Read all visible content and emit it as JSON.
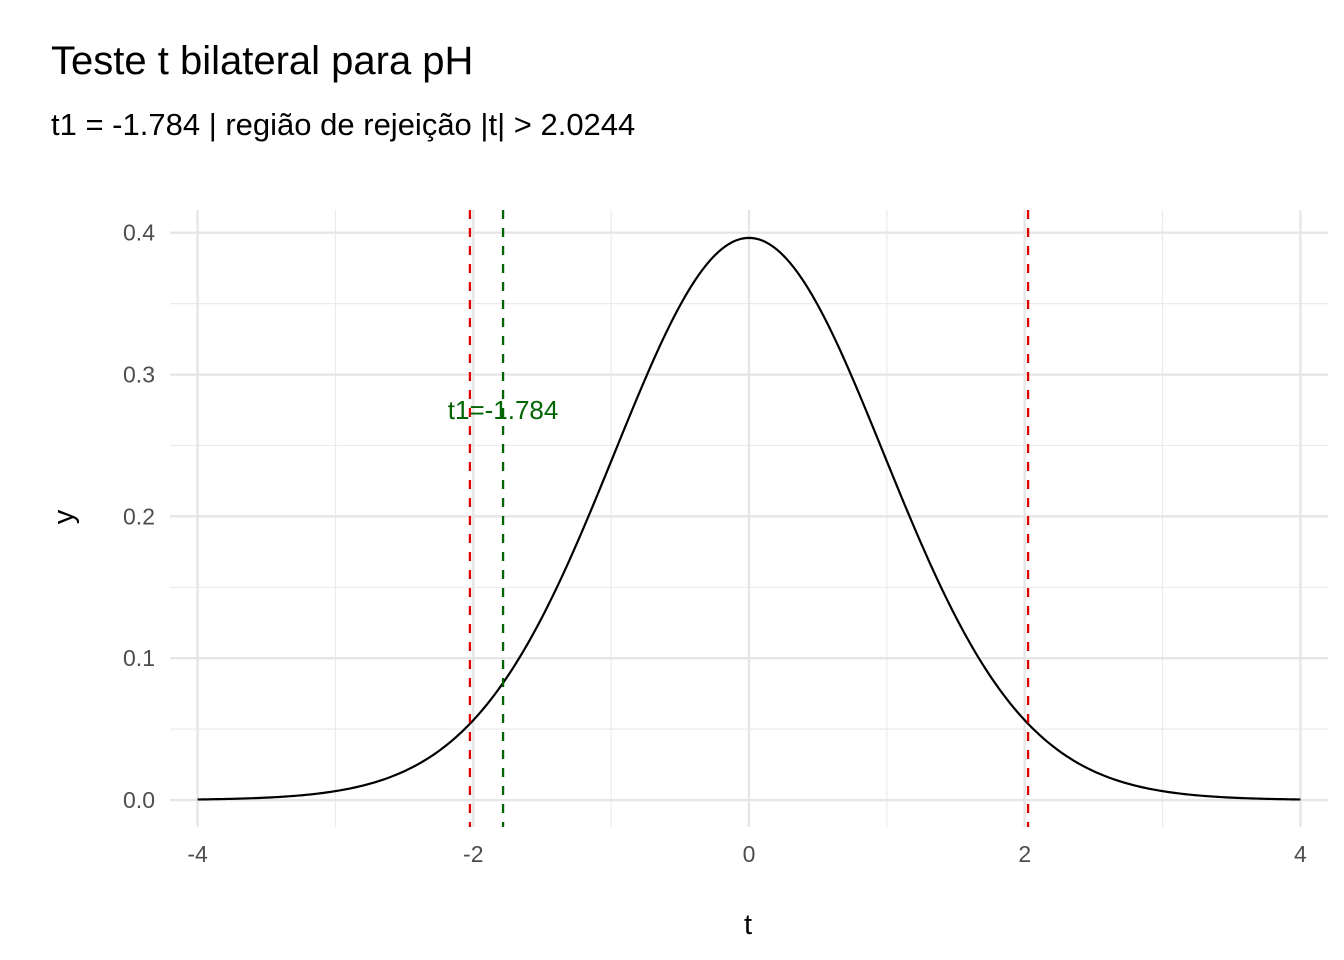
{
  "chart_data": {
    "type": "line",
    "title": "Teste t bilateral para pH",
    "subtitle": "t1 = -1.784  | região de rejeição |t| > 2.0244",
    "xlabel": "t",
    "ylabel": "y",
    "xlim": [
      -4.2,
      4.2
    ],
    "ylim": [
      -0.019,
      0.416
    ],
    "x_ticks": [
      -4,
      -2,
      0,
      2,
      4
    ],
    "x_tick_labels": [
      "-4",
      "-2",
      "0",
      "2",
      "4"
    ],
    "y_ticks": [
      0.0,
      0.1,
      0.2,
      0.3,
      0.4
    ],
    "y_tick_labels": [
      "0.0",
      "0.1",
      "0.2",
      "0.3",
      "0.4"
    ],
    "grid": true,
    "distribution": {
      "name": "t",
      "df": 38,
      "x_range": [
        -4,
        4
      ]
    },
    "critical_value": 2.0244,
    "critical_lines": [
      {
        "x": -2.0244,
        "color": "#e00000",
        "style": "dashed"
      },
      {
        "x": 2.0244,
        "color": "#e00000",
        "style": "dashed"
      }
    ],
    "statistic_line": {
      "x": -1.784,
      "color": "#006400",
      "style": "dashed"
    },
    "annotation": {
      "text": "t1=-1.784",
      "x": -1.784,
      "y": 0.275,
      "color": "#006400"
    },
    "curve_color": "#000000"
  }
}
